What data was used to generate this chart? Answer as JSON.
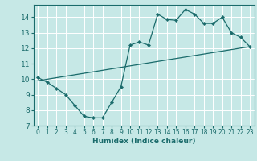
{
  "title": "",
  "xlabel": "Humidex (Indice chaleur)",
  "ylabel": "",
  "bg_color": "#c6e8e6",
  "grid_color": "#ffffff",
  "line_color": "#1a6b6b",
  "xlim": [
    -0.5,
    23.5
  ],
  "ylim": [
    7,
    14.8
  ],
  "yticks": [
    7,
    8,
    9,
    10,
    11,
    12,
    13,
    14
  ],
  "xticks": [
    0,
    1,
    2,
    3,
    4,
    5,
    6,
    7,
    8,
    9,
    10,
    11,
    12,
    13,
    14,
    15,
    16,
    17,
    18,
    19,
    20,
    21,
    22,
    23
  ],
  "curve_x": [
    0,
    1,
    2,
    3,
    4,
    5,
    6,
    7,
    8,
    9,
    10,
    11,
    12,
    13,
    14,
    15,
    16,
    17,
    18,
    19,
    20,
    21,
    22,
    23
  ],
  "curve_y": [
    10.1,
    9.8,
    9.4,
    9.0,
    8.3,
    7.6,
    7.5,
    7.5,
    8.5,
    9.5,
    12.2,
    12.4,
    12.2,
    14.2,
    13.85,
    13.8,
    14.5,
    14.2,
    13.6,
    13.6,
    14.0,
    13.0,
    12.7,
    12.1
  ],
  "line_x": [
    0,
    23
  ],
  "line_y": [
    9.9,
    12.1
  ]
}
